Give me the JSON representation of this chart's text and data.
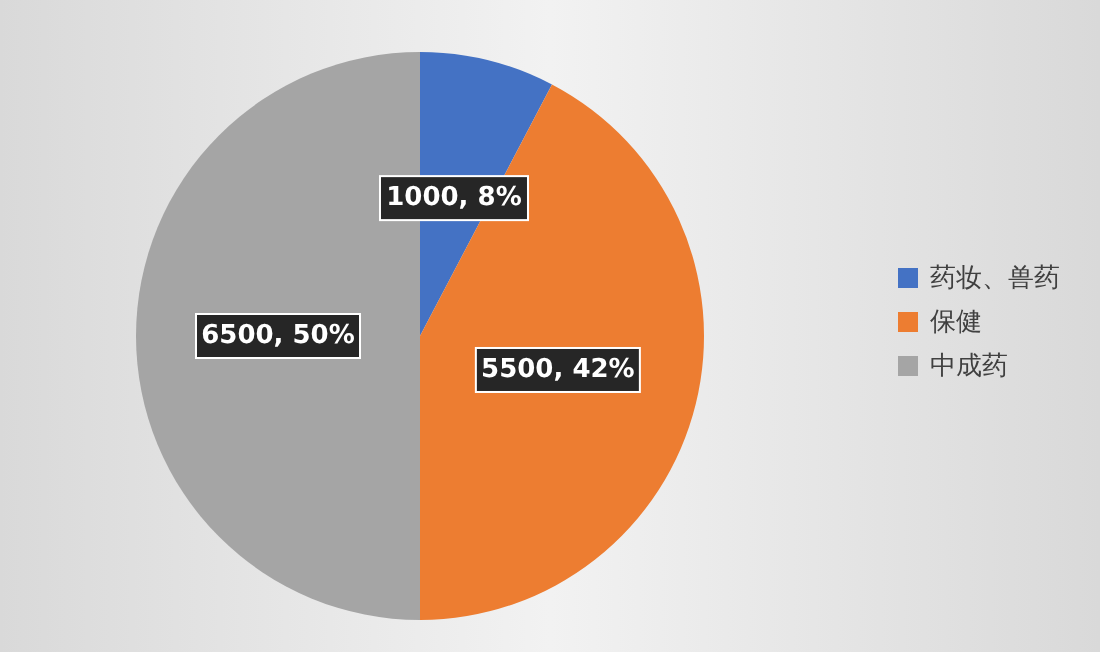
{
  "chart_data": {
    "type": "pie",
    "categories": [
      "药妆、兽药",
      "保健",
      "中成药"
    ],
    "values": [
      1000,
      5500,
      6500
    ],
    "colors": [
      "#4472c4",
      "#ed7d31",
      "#a5a5a5"
    ],
    "value_labels": [
      "1000, 8%",
      "5500, 42%",
      "6500, 50%"
    ],
    "legend": "right"
  }
}
